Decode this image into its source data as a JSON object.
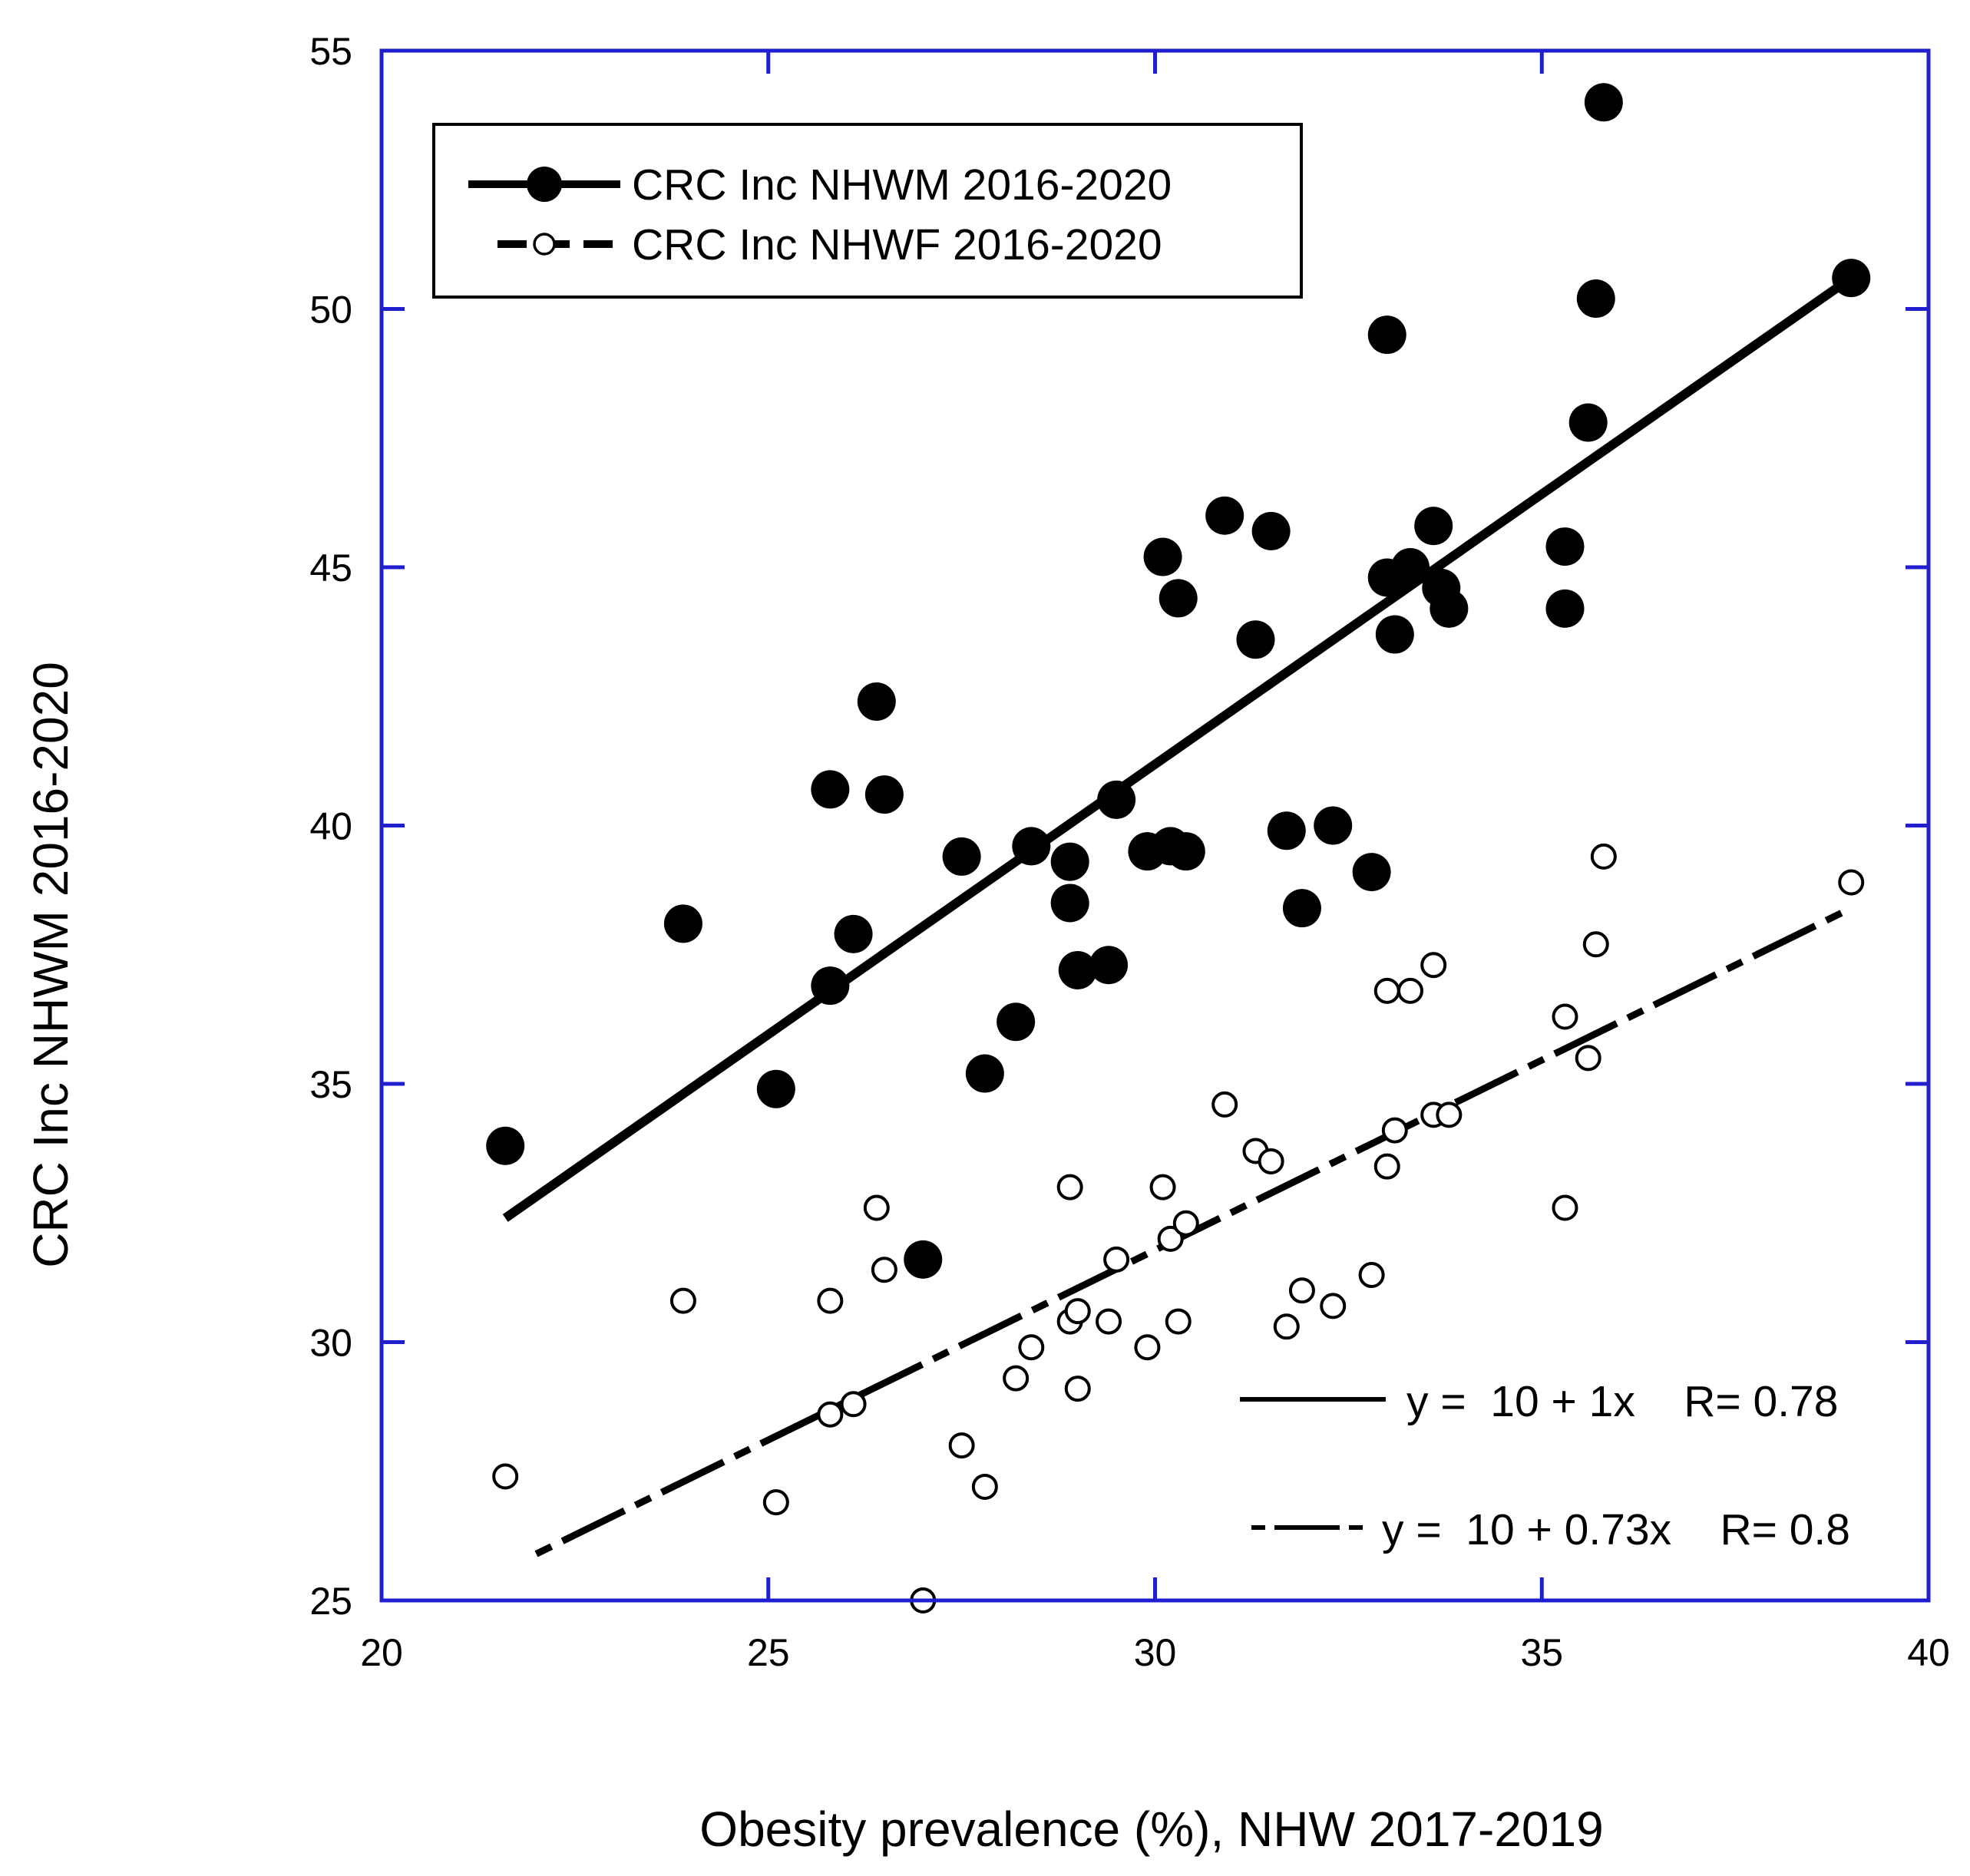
{
  "chart_data": {
    "type": "scatter",
    "title": "",
    "xlabel": "Obesity prevalence (%),   NHW 2017-2019",
    "ylabel": "CRC Inc NHWM 2016-2020",
    "xlim": [
      20,
      40
    ],
    "ylim": [
      25,
      55
    ],
    "xticks": [
      20,
      25,
      30,
      35,
      40
    ],
    "yticks": [
      25,
      30,
      35,
      40,
      45,
      50,
      55
    ],
    "grid": false,
    "legend_position": "top-left",
    "series": [
      {
        "name": "CRC Inc NHWM 2016-2020",
        "marker": "filled-circle",
        "color": "#000000",
        "points": [
          [
            21.6,
            33.8
          ],
          [
            23.9,
            38.1
          ],
          [
            25.1,
            34.9
          ],
          [
            25.8,
            40.7
          ],
          [
            25.8,
            36.9
          ],
          [
            26.1,
            37.9
          ],
          [
            26.4,
            42.4
          ],
          [
            26.5,
            40.6
          ],
          [
            27.0,
            31.6
          ],
          [
            27.5,
            39.4
          ],
          [
            27.8,
            35.2
          ],
          [
            28.2,
            36.2
          ],
          [
            28.4,
            39.6
          ],
          [
            28.9,
            38.5
          ],
          [
            28.9,
            39.3
          ],
          [
            29.0,
            37.2
          ],
          [
            29.4,
            37.3
          ],
          [
            29.5,
            40.5
          ],
          [
            29.9,
            39.5
          ],
          [
            30.1,
            45.2
          ],
          [
            30.2,
            39.6
          ],
          [
            30.3,
            44.4
          ],
          [
            30.4,
            39.5
          ],
          [
            30.9,
            46.0
          ],
          [
            31.3,
            43.6
          ],
          [
            31.5,
            45.7
          ],
          [
            31.7,
            39.9
          ],
          [
            31.9,
            38.4
          ],
          [
            32.3,
            40.0
          ],
          [
            32.8,
            39.1
          ],
          [
            33.0,
            49.5
          ],
          [
            33.0,
            44.8
          ],
          [
            33.1,
            43.7
          ],
          [
            33.3,
            45.0
          ],
          [
            33.6,
            45.8
          ],
          [
            33.7,
            44.6
          ],
          [
            33.8,
            44.2
          ],
          [
            35.3,
            45.4
          ],
          [
            35.3,
            44.2
          ],
          [
            35.6,
            47.8
          ],
          [
            35.7,
            50.2
          ],
          [
            35.8,
            54.0
          ],
          [
            39.0,
            50.6
          ]
        ]
      },
      {
        "name": "CRC Inc NHWF 2016-2020",
        "marker": "open-circle",
        "color": "#000000",
        "points": [
          [
            21.6,
            27.4
          ],
          [
            23.9,
            30.8
          ],
          [
            25.1,
            26.9
          ],
          [
            25.8,
            30.8
          ],
          [
            25.8,
            28.6
          ],
          [
            26.1,
            28.8
          ],
          [
            26.4,
            32.6
          ],
          [
            26.5,
            31.4
          ],
          [
            27.0,
            25.0
          ],
          [
            27.5,
            28.0
          ],
          [
            27.8,
            27.2
          ],
          [
            28.2,
            29.3
          ],
          [
            28.4,
            29.9
          ],
          [
            28.9,
            33.0
          ],
          [
            28.9,
            30.4
          ],
          [
            29.0,
            30.6
          ],
          [
            29.0,
            29.1
          ],
          [
            29.4,
            30.4
          ],
          [
            29.5,
            31.6
          ],
          [
            29.9,
            29.9
          ],
          [
            30.1,
            33.0
          ],
          [
            30.2,
            32.0
          ],
          [
            30.3,
            30.4
          ],
          [
            30.4,
            32.3
          ],
          [
            30.9,
            34.6
          ],
          [
            31.3,
            33.7
          ],
          [
            31.5,
            33.5
          ],
          [
            31.7,
            30.3
          ],
          [
            31.9,
            31.0
          ],
          [
            32.3,
            30.7
          ],
          [
            32.8,
            31.3
          ],
          [
            33.0,
            36.8
          ],
          [
            33.0,
            33.4
          ],
          [
            33.1,
            34.1
          ],
          [
            33.3,
            36.8
          ],
          [
            33.6,
            37.3
          ],
          [
            33.6,
            34.4
          ],
          [
            33.8,
            34.4
          ],
          [
            35.3,
            36.3
          ],
          [
            35.3,
            32.6
          ],
          [
            35.6,
            35.5
          ],
          [
            35.7,
            37.7
          ],
          [
            35.8,
            39.4
          ],
          [
            39.0,
            38.9
          ]
        ]
      }
    ],
    "fits": [
      {
        "series": "CRC Inc NHWM 2016-2020",
        "style": "solid",
        "from": [
          21.6,
          32.4
        ],
        "to": [
          39.0,
          50.6
        ],
        "label": "y =  10 + 1x    R= 0.78"
      },
      {
        "series": "CRC Inc NHWF 2016-2020",
        "style": "dashed",
        "from": [
          22.0,
          25.9
        ],
        "to": [
          39.0,
          38.4
        ],
        "label": "y =  10 + 0.73x    R= 0.8"
      }
    ]
  }
}
